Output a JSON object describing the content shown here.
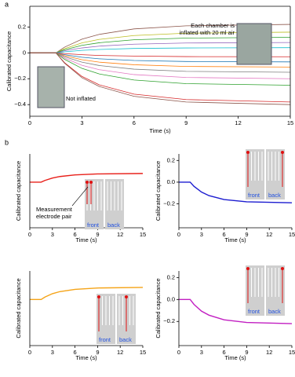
{
  "chart_data": [
    {
      "type": "line",
      "panel_label": "a",
      "xlabel": "Time (s)",
      "ylabel": "Calibrated capacitance",
      "annotations": [
        "Each chamber is",
        "inflated with 20 ml air",
        "Not inflated"
      ],
      "x": [
        0,
        1.5,
        2,
        3,
        4,
        6,
        9,
        15
      ],
      "xlim": [
        0,
        15
      ],
      "xticks": [
        0,
        3,
        6,
        9,
        12,
        15
      ],
      "ylim": [
        -0.49,
        0.36
      ],
      "yticks": [
        {
          "value": -0.4,
          "label": "−0.4"
        },
        {
          "value": -0.2,
          "label": "−0.2"
        },
        0,
        0.2
      ],
      "series": [
        {
          "color": "#8c564b",
          "values": [
            0,
            0,
            0.044,
            0.106,
            0.143,
            0.185,
            0.209,
            0.22
          ]
        },
        {
          "color": "#bcbd22",
          "values": [
            0,
            0,
            0.032,
            0.077,
            0.104,
            0.134,
            0.152,
            0.16
          ]
        },
        {
          "color": "#2ca02c",
          "values": [
            0,
            0,
            0.024,
            0.058,
            0.078,
            0.101,
            0.114,
            0.12
          ]
        },
        {
          "color": "#9467bd",
          "values": [
            0,
            0,
            0.016,
            0.038,
            0.052,
            0.067,
            0.076,
            0.08
          ]
        },
        {
          "color": "#17becf",
          "values": [
            0,
            0,
            0.008,
            0.019,
            0.026,
            0.034,
            0.038,
            0.04
          ]
        },
        {
          "color": "#d62728",
          "values": [
            0,
            0,
            -0.006,
            -0.014,
            -0.02,
            -0.025,
            -0.029,
            -0.03
          ]
        },
        {
          "color": "#1f77b4",
          "values": [
            0,
            0,
            -0.014,
            -0.034,
            -0.046,
            -0.059,
            -0.067,
            -0.07
          ]
        },
        {
          "color": "#ff7f0e",
          "values": [
            0,
            0,
            -0.022,
            -0.053,
            -0.072,
            -0.092,
            -0.105,
            -0.11
          ]
        },
        {
          "color": "#7f7f7f",
          "values": [
            0,
            0,
            -0.03,
            -0.072,
            -0.098,
            -0.126,
            -0.143,
            -0.15
          ]
        },
        {
          "color": "#e377c2",
          "values": [
            0,
            0,
            -0.04,
            -0.096,
            -0.13,
            -0.168,
            -0.19,
            -0.2
          ]
        },
        {
          "color": "#2ca02c",
          "values": [
            0,
            0,
            -0.05,
            -0.12,
            -0.163,
            -0.21,
            -0.238,
            -0.25
          ]
        },
        {
          "color": "#d62728",
          "values": [
            0,
            0,
            -0.076,
            -0.182,
            -0.247,
            -0.319,
            -0.361,
            -0.38
          ]
        },
        {
          "color": "#8c564b",
          "values": [
            0,
            0,
            -0.08,
            -0.192,
            -0.26,
            -0.336,
            -0.38,
            -0.4
          ]
        }
      ]
    },
    {
      "type": "line",
      "panel_label": "b",
      "xlabel": "Time (s)",
      "ylabel": "Calibrated capacitance",
      "annotations": [
        "Measurement",
        "electrode pair"
      ],
      "inset": [
        "front",
        "back"
      ],
      "x": [
        0,
        1.5,
        2,
        3,
        4,
        6,
        9,
        15
      ],
      "xlim": [
        0,
        15
      ],
      "xticks": [
        0,
        3,
        6,
        9,
        12,
        15
      ],
      "ylim": [
        -0.42,
        0.26
      ],
      "series": [
        {
          "color": "#e8201a",
          "values": [
            0,
            0,
            0.016,
            0.038,
            0.052,
            0.067,
            0.076,
            0.08
          ]
        }
      ]
    },
    {
      "type": "line",
      "xlabel": "Time (s)",
      "ylabel": "Calibrated capacitance",
      "inset": [
        "front",
        "back"
      ],
      "x": [
        0,
        1.5,
        2,
        3,
        4,
        6,
        9,
        15
      ],
      "xlim": [
        0,
        15
      ],
      "xticks": [
        0,
        3,
        6,
        9,
        12,
        15
      ],
      "ylim": [
        -0.42,
        0.26
      ],
      "yticks": [
        {
          "value": -0.2,
          "label": "−0.2"
        },
        {
          "value": 0,
          "label": "0.0"
        },
        0.2
      ],
      "series": [
        {
          "color": "#1c1cd0",
          "values": [
            0,
            0,
            -0.038,
            -0.091,
            -0.124,
            -0.16,
            -0.181,
            -0.19
          ]
        }
      ]
    },
    {
      "type": "line",
      "xlabel": "Time (s)",
      "ylabel": "Calibrated capacitance",
      "inset": [
        "front",
        "back"
      ],
      "x": [
        0,
        1.5,
        2,
        3,
        4,
        6,
        9,
        15
      ],
      "xlim": [
        0,
        15
      ],
      "xticks": [
        0,
        3,
        6,
        9,
        12,
        15
      ],
      "ylim": [
        -0.42,
        0.26
      ],
      "series": [
        {
          "color": "#f5a418",
          "values": [
            0,
            0,
            0.022,
            0.053,
            0.072,
            0.092,
            0.105,
            0.11
          ]
        }
      ]
    },
    {
      "type": "line",
      "xlabel": "Time (s)",
      "ylabel": "Calibrated capacitance",
      "inset": [
        "front",
        "back"
      ],
      "x": [
        0,
        1.5,
        2,
        3,
        4,
        6,
        9,
        15
      ],
      "xlim": [
        0,
        15
      ],
      "xticks": [
        0,
        3,
        6,
        9,
        12,
        15
      ],
      "ylim": [
        -0.42,
        0.26
      ],
      "yticks": [
        {
          "value": -0.2,
          "label": "−0.2"
        },
        {
          "value": 0,
          "label": "0.0"
        },
        0.2
      ],
      "series": [
        {
          "color": "#c21fc2",
          "values": [
            0,
            0,
            -0.044,
            -0.106,
            -0.143,
            -0.185,
            -0.209,
            -0.22
          ]
        }
      ]
    }
  ]
}
